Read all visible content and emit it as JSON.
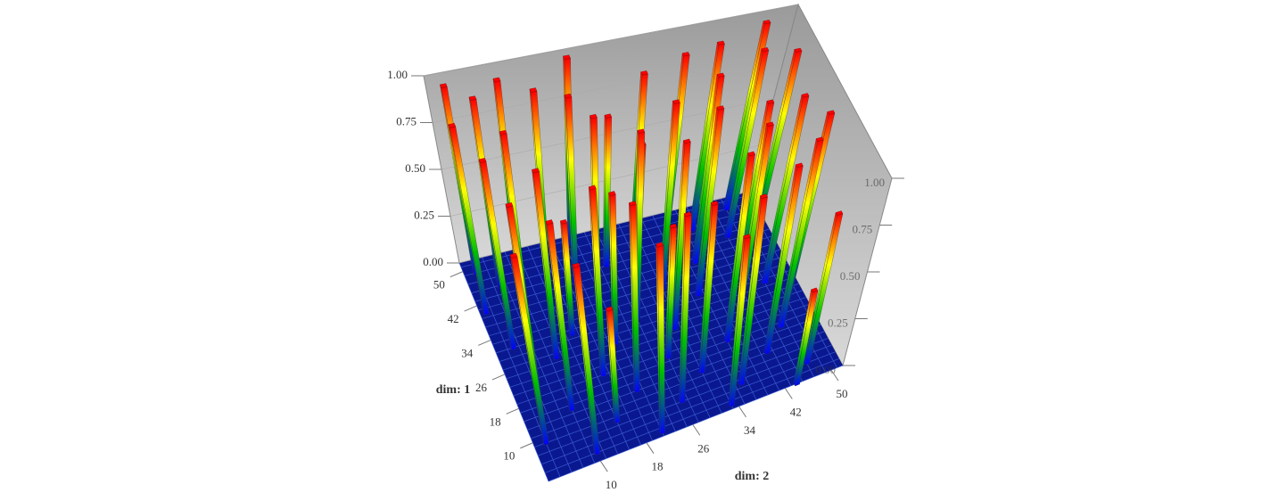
{
  "chart_data": {
    "type": "bar3d",
    "xlabel": "dim: 2",
    "ylabel": "dim: 1",
    "xlim": [
      1,
      52
    ],
    "ylim": [
      1,
      52
    ],
    "zlim": [
      0,
      1
    ],
    "xticks": [
      10,
      18,
      26,
      34,
      42,
      50
    ],
    "yticks": [
      10,
      18,
      26,
      34,
      42,
      50
    ],
    "zticks": [
      {
        "value": 0,
        "label": "0.00"
      },
      {
        "value": 0.25,
        "label": "0.25"
      },
      {
        "value": 0.5,
        "label": "0.50"
      },
      {
        "value": 0.75,
        "label": "0.75"
      },
      {
        "value": 1,
        "label": "1.00"
      }
    ],
    "colormap": [
      "#0000ff",
      "#00c000",
      "#ffff00",
      "#ff0000"
    ],
    "x": [
      3,
      10,
      20,
      30,
      40,
      47,
      6,
      14,
      24,
      35,
      45,
      2,
      18,
      28,
      38,
      49,
      8,
      20,
      31,
      44,
      4,
      14,
      25,
      36,
      47,
      10,
      20,
      30,
      41,
      49,
      5,
      16,
      27,
      37,
      46,
      9,
      20,
      31,
      42,
      3,
      15,
      26,
      36,
      47,
      10,
      21,
      33,
      44
    ],
    "y": [
      49,
      48,
      50,
      47,
      46,
      49,
      45,
      44,
      43,
      45,
      42,
      40,
      41,
      39,
      38,
      40,
      36,
      35,
      34,
      33,
      31,
      30,
      29,
      30,
      28,
      26,
      25,
      24,
      23,
      22,
      20,
      19,
      18,
      17,
      16,
      14,
      13,
      12,
      11,
      9,
      8,
      7,
      6,
      5,
      3,
      2,
      2,
      1
    ],
    "values": [
      1,
      1,
      1,
      0.9,
      1,
      1,
      1,
      1,
      0.8,
      1,
      1,
      1,
      1,
      0.7,
      1,
      1,
      1,
      1,
      1,
      0.9,
      1,
      0.6,
      1,
      1,
      1,
      1,
      0.8,
      1,
      1,
      1,
      1,
      1,
      0.7,
      1,
      1,
      1,
      1,
      0.9,
      1,
      1,
      0.6,
      1,
      1,
      0.8,
      1,
      1,
      0.9,
      0.5
    ]
  }
}
